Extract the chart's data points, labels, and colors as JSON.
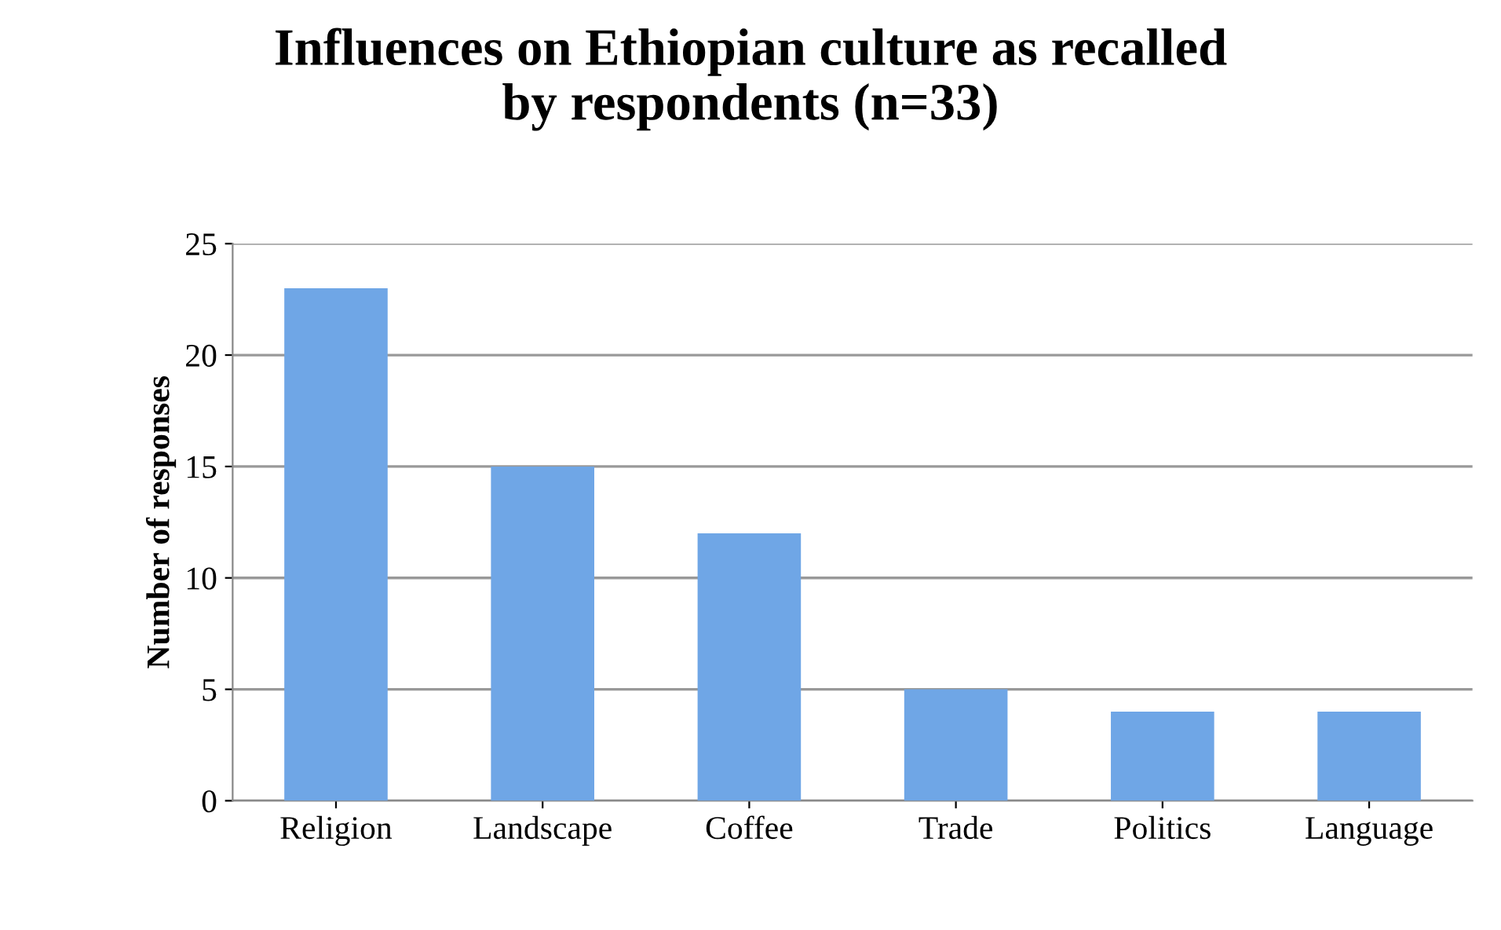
{
  "chart_data": {
    "type": "bar",
    "title": "Influences on Ethiopian culture as recalled\nby respondents (n=33)",
    "ylabel": "Number of responses",
    "categories": [
      "Religion",
      "Landscape",
      "Coffee",
      "Trade",
      "Politics",
      "Language"
    ],
    "values": [
      23,
      15,
      12,
      5,
      4,
      4
    ],
    "color": "#6fa6e6",
    "ylim": [
      0,
      25
    ],
    "yticks": [
      0,
      5,
      10,
      15,
      20,
      25
    ],
    "grid": "y",
    "legend": false
  }
}
